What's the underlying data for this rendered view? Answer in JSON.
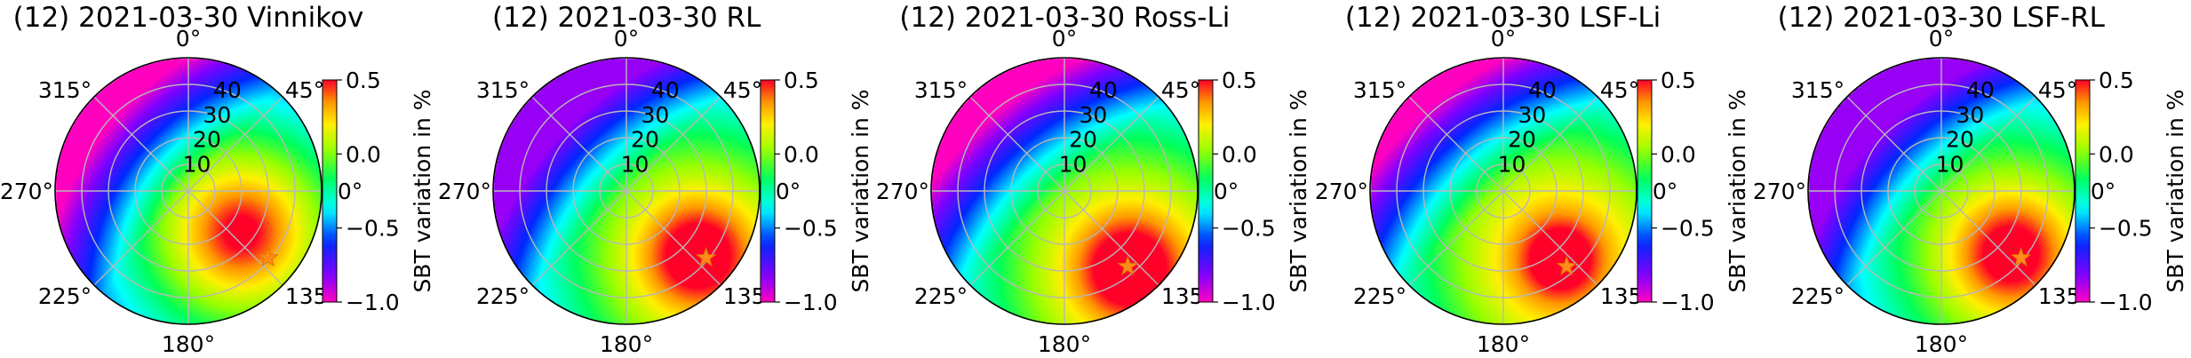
{
  "figure": {
    "colormap": "gist_rainbow",
    "colorbar_label": "SBT variation in %"
  },
  "chart_data": [
    {
      "type": "polar-heatmap",
      "title": "(12) 2021-03-30 Vinnikov",
      "angle_ticks": [
        "0°",
        "45°",
        "90°",
        "135°",
        "180°",
        "225°",
        "270°",
        "315°"
      ],
      "radial_ticks": [
        "10",
        "20",
        "30",
        "40"
      ],
      "radial_range": [
        0,
        50
      ],
      "angle_direction": "clockwise-from-top",
      "grid": true,
      "colorbar_ticks": [
        "0.5",
        "0.0",
        "−0.5",
        "−1.0"
      ],
      "colorbar_range": [
        -1.0,
        0.5
      ],
      "hotspot": {
        "azimuth_deg": 128,
        "zenith_deg": 25,
        "value": 0.35,
        "spread_deg": 20
      },
      "gradient_axis_deg": 310,
      "peripheral_low": -1.0,
      "star_marker": {
        "azimuth_deg": 130,
        "zenith_deg": 39
      },
      "star_color": "#ff8c1a"
    },
    {
      "type": "polar-heatmap",
      "title": "(12) 2021-03-30 RL",
      "angle_ticks": [
        "0°",
        "45°",
        "90°",
        "135°",
        "180°",
        "225°",
        "270°",
        "315°"
      ],
      "radial_ticks": [
        "10",
        "20",
        "30",
        "40"
      ],
      "radial_range": [
        0,
        50
      ],
      "angle_direction": "clockwise-from-top",
      "grid": true,
      "colorbar_ticks": [
        "0.5",
        "0.0",
        "−0.5",
        "−1.0"
      ],
      "colorbar_range": [
        -1.0,
        0.5
      ],
      "hotspot": {
        "azimuth_deg": 132,
        "zenith_deg": 36,
        "value": 0.5,
        "spread_deg": 14
      },
      "gradient_axis_deg": 315,
      "peripheral_low": -0.85,
      "star_marker": {
        "azimuth_deg": 130,
        "zenith_deg": 39
      },
      "star_color": "#ff8c1a"
    },
    {
      "type": "polar-heatmap",
      "title": "(12) 2021-03-30 Ross-Li",
      "angle_ticks": [
        "0°",
        "45°",
        "90°",
        "135°",
        "180°",
        "225°",
        "270°",
        "315°"
      ],
      "radial_ticks": [
        "10",
        "20",
        "30",
        "40"
      ],
      "radial_range": [
        0,
        50
      ],
      "angle_direction": "clockwise-from-top",
      "grid": true,
      "colorbar_ticks": [
        "0.5",
        "0.0",
        "−0.5",
        "−1.0"
      ],
      "colorbar_range": [
        -1.0,
        0.5
      ],
      "hotspot": {
        "azimuth_deg": 140,
        "zenith_deg": 38,
        "value": 0.55,
        "spread_deg": 13
      },
      "gradient_axis_deg": 320,
      "peripheral_low": -1.0,
      "star_marker": {
        "azimuth_deg": 140,
        "zenith_deg": 37
      },
      "star_color": "#ff8c1a"
    },
    {
      "type": "polar-heatmap",
      "title": "(12) 2021-03-30 LSF-Li",
      "angle_ticks": [
        "0°",
        "45°",
        "90°",
        "135°",
        "180°",
        "225°",
        "270°",
        "315°"
      ],
      "radial_ticks": [
        "10",
        "20",
        "30",
        "40"
      ],
      "radial_range": [
        0,
        50
      ],
      "angle_direction": "clockwise-from-top",
      "grid": true,
      "colorbar_ticks": [
        "0.5",
        "0.0",
        "−0.5",
        "−1.0"
      ],
      "colorbar_range": [
        -1.0,
        0.5
      ],
      "hotspot": {
        "azimuth_deg": 140,
        "zenith_deg": 33,
        "value": 0.55,
        "spread_deg": 9
      },
      "gradient_axis_deg": 320,
      "peripheral_low": -1.0,
      "star_marker": {
        "azimuth_deg": 140,
        "zenith_deg": 37
      },
      "star_color": "#ff8c1a"
    },
    {
      "type": "polar-heatmap",
      "title": "(12) 2021-03-30 LSF-RL",
      "angle_ticks": [
        "0°",
        "45°",
        "90°",
        "135°",
        "180°",
        "225°",
        "270°",
        "315°"
      ],
      "radial_ticks": [
        "10",
        "20",
        "30",
        "40"
      ],
      "radial_range": [
        0,
        50
      ],
      "angle_direction": "clockwise-from-top",
      "grid": true,
      "colorbar_ticks": [
        "0.5",
        "0.0",
        "−0.5",
        "−1.0"
      ],
      "colorbar_range": [
        -1.0,
        0.5
      ],
      "hotspot": {
        "azimuth_deg": 132,
        "zenith_deg": 35,
        "value": 0.45,
        "spread_deg": 15
      },
      "gradient_axis_deg": 315,
      "peripheral_low": -0.85,
      "star_marker": {
        "azimuth_deg": 130,
        "zenith_deg": 39
      },
      "star_color": "#ff8c1a"
    }
  ]
}
